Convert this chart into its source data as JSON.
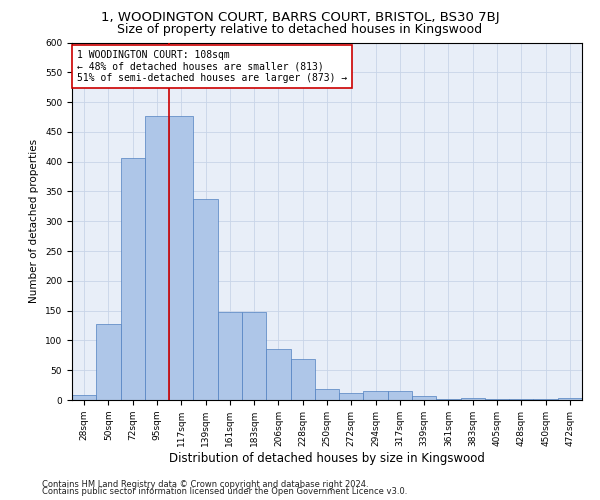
{
  "title": "1, WOODINGTON COURT, BARRS COURT, BRISTOL, BS30 7BJ",
  "subtitle": "Size of property relative to detached houses in Kingswood",
  "xlabel": "Distribution of detached houses by size in Kingswood",
  "ylabel": "Number of detached properties",
  "categories": [
    "28sqm",
    "50sqm",
    "72sqm",
    "95sqm",
    "117sqm",
    "139sqm",
    "161sqm",
    "183sqm",
    "206sqm",
    "228sqm",
    "250sqm",
    "272sqm",
    "294sqm",
    "317sqm",
    "339sqm",
    "361sqm",
    "383sqm",
    "405sqm",
    "428sqm",
    "450sqm",
    "472sqm"
  ],
  "values": [
    8,
    127,
    406,
    476,
    476,
    338,
    147,
    147,
    85,
    68,
    18,
    12,
    15,
    15,
    6,
    2,
    4,
    2,
    2,
    2,
    3
  ],
  "bar_color": "#aec6e8",
  "bar_edge_color": "#5080c0",
  "vline_x": 3.5,
  "vline_color": "#cc0000",
  "annotation_text": "1 WOODINGTON COURT: 108sqm\n← 48% of detached houses are smaller (813)\n51% of semi-detached houses are larger (873) →",
  "annotation_box_color": "#ffffff",
  "annotation_box_edge": "#cc0000",
  "ylim": [
    0,
    600
  ],
  "yticks": [
    0,
    50,
    100,
    150,
    200,
    250,
    300,
    350,
    400,
    450,
    500,
    550,
    600
  ],
  "grid_color": "#c8d4e8",
  "background_color": "#e8eef8",
  "footer_line1": "Contains HM Land Registry data © Crown copyright and database right 2024.",
  "footer_line2": "Contains public sector information licensed under the Open Government Licence v3.0.",
  "title_fontsize": 9.5,
  "subtitle_fontsize": 9,
  "xlabel_fontsize": 8.5,
  "ylabel_fontsize": 7.5,
  "tick_fontsize": 6.5,
  "footer_fontsize": 6,
  "annot_fontsize": 7
}
